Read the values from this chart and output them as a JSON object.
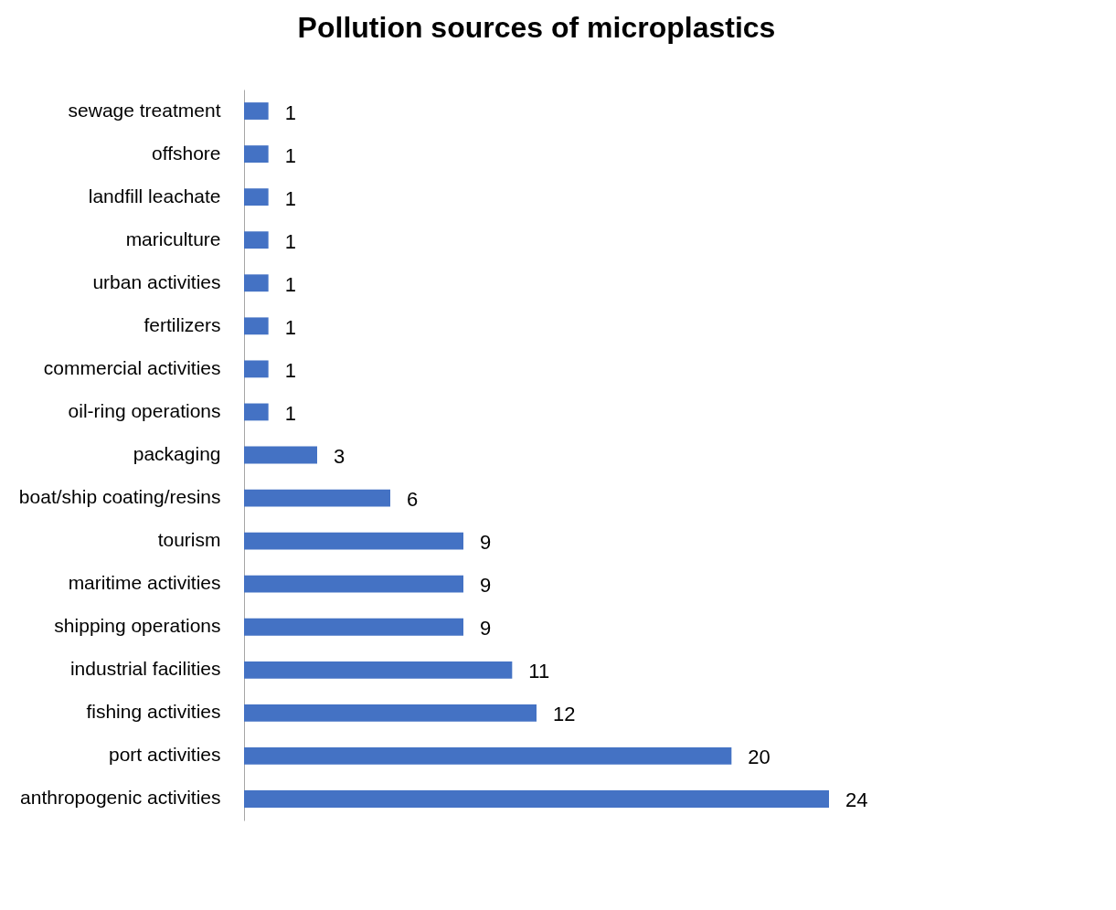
{
  "chart_data": {
    "type": "bar",
    "orientation": "horizontal",
    "title": "Pollution sources of microplastics",
    "categories": [
      "sewage treatment",
      "offshore",
      "landfill leachate",
      "mariculture",
      "urban activities",
      "fertilizers",
      "commercial activities",
      "oil-ring operations",
      "packaging",
      "boat/ship coating/resins",
      "tourism",
      "maritime activities",
      "shipping operations",
      "industrial facilities",
      "fishing activities",
      "port activities",
      "anthropogenic activities"
    ],
    "values": [
      1,
      1,
      1,
      1,
      1,
      1,
      1,
      1,
      3,
      6,
      9,
      9,
      9,
      11,
      12,
      20,
      24
    ],
    "color": "#4472c4",
    "data_labels": true
  }
}
